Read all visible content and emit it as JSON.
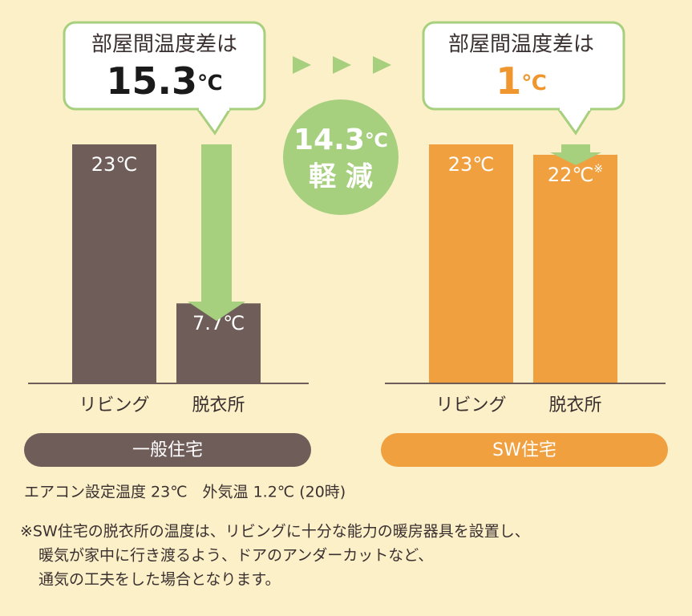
{
  "chart_data": [
    {
      "type": "bar",
      "title": "一般住宅",
      "callout": "部屋間温度差は",
      "difference": 15.3,
      "unit": "℃",
      "emphasis_color": "#1a1a1a",
      "categories": [
        "リビング",
        "脱衣所"
      ],
      "values": [
        23,
        7.7
      ],
      "value_labels": [
        "23℃",
        "7.7℃"
      ],
      "color": "#6f5d5a",
      "ylim": [
        0,
        23
      ]
    },
    {
      "type": "bar",
      "title": "SW住宅",
      "callout": "部屋間温度差は",
      "difference": 1,
      "unit": "℃",
      "emphasis_color": "#f0962e",
      "categories": [
        "リビング",
        "脱衣所"
      ],
      "values": [
        23,
        22
      ],
      "value_labels": [
        "23℃",
        "22℃"
      ],
      "note_mark": "※",
      "color": "#f1a03f",
      "ylim": [
        0,
        23
      ]
    }
  ],
  "reduction": {
    "value": 14.3,
    "unit": "℃",
    "label": "軽 減"
  },
  "notes": [
    "エアコン設定温度 23℃　外気温 1.2℃ (20時)",
    "※SW住宅の脱衣所の温度は、リビングに十分な能力の暖房器具を設置し、",
    "暖気が家中に行き渡るよう、ドアのアンダーカットなど、",
    "通気の工夫をした場合となります。"
  ]
}
